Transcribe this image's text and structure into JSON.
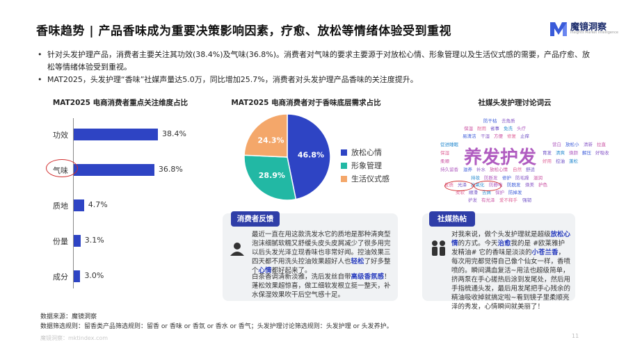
{
  "title": "香味趋势 | 产品香味成为重要决策影响因素，疗愈、放松等情绪体验受到重视",
  "logo": {
    "name": "魔镜洞察",
    "sub": "Insights Market Intelligence"
  },
  "bullets": [
    "针对头发护理产品，消费者主要关注其功效(38.4%)及气味(36.8%)。消费者对气味的要求主要源于对放松心情、形象管理以及生活仪式感的需要，产品疗愈、放松等情绪体验受到重视。",
    "MAT2025，头发护理“香味”社媒声量达5.0万，同比增加25.7%，消费者对头发护理产品香味的关注度提升。"
  ],
  "chart_data": [
    {
      "type": "bar",
      "orientation": "horizontal",
      "title": "MAT2025 电商消费者重点关注维度占比",
      "categories": [
        "功效",
        "气味",
        "质地",
        "份量",
        "成分"
      ],
      "values": [
        38.4,
        36.8,
        4.7,
        3.1,
        3.0
      ],
      "value_labels": [
        "38.4%",
        "36.8%",
        "4.7%",
        "3.1%",
        "3.0%"
      ],
      "highlighted": "气味",
      "color": "#2e44c4",
      "xlim": [
        0,
        40
      ]
    },
    {
      "type": "pie",
      "title": "MAT2025 电商消费者对于香味底层需求占比",
      "labels": [
        "放松心情",
        "形象管理",
        "生活仪式感"
      ],
      "values": [
        46.8,
        28.9,
        24.3
      ],
      "value_labels": [
        "46.8%",
        "28.9%",
        "24.3%"
      ],
      "colors": [
        "#2e44c4",
        "#22b8a4",
        "#f4a76a"
      ]
    }
  ],
  "wordcloud": {
    "title": "社媒头发护理讨论词云",
    "big": "养发护发",
    "words": [
      "防干枯",
      "去角质",
      "保湿",
      "耐用",
      "省事",
      "免洗",
      "头疗",
      "易清洁",
      "干湿",
      "方便",
      "修复",
      "止痒",
      "促进睡眠",
      "营白",
      "放松小",
      "清新",
      "拉直",
      "保湿",
      "育发",
      "清爽",
      "焕颜",
      "解压",
      "好吸收",
      "柔顺",
      "好用",
      "控油",
      "蓬松",
      "持久留香",
      "滋养",
      "补水",
      "放松心情",
      "自然",
      "舒适",
      "持妆",
      "防断发",
      "修护",
      "防毛躁",
      "滋润",
      "发质",
      "光泽",
      "抗氧化",
      "防静电",
      "防脱发",
      "焕美",
      "护色",
      "柔软",
      "顺滑",
      "去屑",
      "保护",
      "防掉发",
      "护发",
      "有光泽",
      "爱不释手",
      "强韧"
    ]
  },
  "card1": {
    "head": "消费者反馈",
    "p1": "最近一直在用这款洗发水它的质地是那种清爽型泡沫细腻软糯又舒缓头皮头皮屑减少了很多用完以后头发光泽立现香味也非常好闻。控油效果三四天都不用洗头控油效果超好人也",
    "p1_hl1": "轻松",
    "p1_mid": "了好多整个",
    "p1_hl2": "心情",
    "p1_end": "都好起来了。",
    "p2_a": "白茶香调清新淡雅，洗后发丝自带",
    "p2_hl": "高级香氛感",
    "p2_b": "！蓬松效果超惊喜，做工细软发根立挺一整天，补水保湿效果吹干后空气感十足。"
  },
  "card2": {
    "head": "社媒热帖",
    "t1": "对我来说，做个头发护理就是超级",
    "t1_hl": "放松心情",
    "t2": "的方式。今天",
    "t2_hl": "治愈",
    "t3": "我的是 #欧莱雅护发精油# 它的香味是淡淡的",
    "t3_hl": "小苍兰香",
    "t4": "，每次用完都觉得自己像个仙女一样，香喷喷的。瞬间满血复活~用法也超级简单，挤两泵在手心搓热后涂到发尾处，然后用手指梳通头发，最后用发尾把手心残余的精油吸收掉就搞定啦~看到镜子里柔顺亮泽的秀发，心情瞬间就美丽了！"
  },
  "footer": {
    "source": "数据来源：魔镜洞察",
    "rule": "数据筛选规则：留香类产品筛选规则：留香 or 香味 or 香氛 or 香水 or 香气；头发护理讨论筛选规则：头发护理 or 头发养护。",
    "site": "魔镜洞察：mktindex.com",
    "page": "11"
  }
}
